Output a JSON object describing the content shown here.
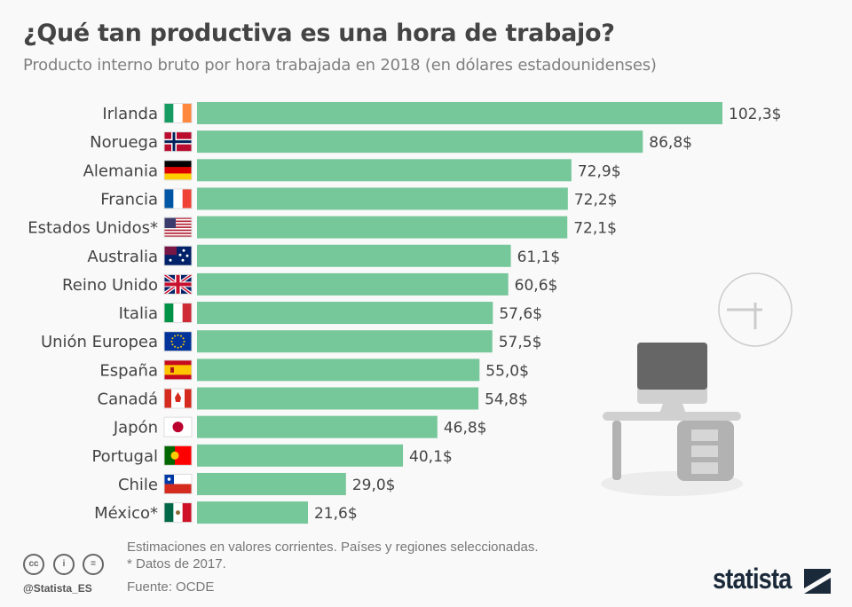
{
  "header": {
    "title": "¿Qué tan productiva es una hora de trabajo?",
    "subtitle": "Producto interno bruto por hora trabajada en 2018 (en dólares estadounidenses)"
  },
  "chart_data": {
    "type": "bar",
    "orientation": "horizontal",
    "title": "¿Qué tan productiva es una hora de trabajo?",
    "subtitle": "Producto interno bruto por hora trabajada en 2018 (en dólares estadounidenses)",
    "categories": [
      "Irlanda",
      "Noruega",
      "Alemania",
      "Francia",
      "Estados Unidos*",
      "Australia",
      "Reino Unido",
      "Italia",
      "Unión Europea",
      "España",
      "Canadá",
      "Japón",
      "Portugal",
      "Chile",
      "México*"
    ],
    "flags": [
      "ireland-flag",
      "norway-flag",
      "germany-flag",
      "france-flag",
      "usa-flag",
      "australia-flag",
      "uk-flag",
      "italy-flag",
      "eu-flag",
      "spain-flag",
      "canada-flag",
      "japan-flag",
      "portugal-flag",
      "chile-flag",
      "mexico-flag"
    ],
    "values": [
      102.3,
      86.8,
      72.9,
      72.2,
      72.1,
      61.1,
      60.6,
      57.6,
      57.5,
      55.0,
      54.8,
      46.8,
      40.1,
      29.0,
      21.6
    ],
    "value_labels": [
      "102,3$",
      "86,8$",
      "72,9$",
      "72,2$",
      "72,1$",
      "61,1$",
      "60,6$",
      "57,6$",
      "57,5$",
      "55,0$",
      "54,8$",
      "46,8$",
      "40,1$",
      "29,0$",
      "21,6$"
    ],
    "xlim": [
      0,
      102.3
    ],
    "grid": false,
    "bar_color": "#76c79a"
  },
  "footer": {
    "note": "Estimaciones en valores corrientes. Países y regiones seleccionadas.",
    "note2": "* Datos de 2017.",
    "source": "Fuente: OCDE",
    "handle": "@Statista_ES",
    "license_icons": [
      "cc-icon",
      "by-icon",
      "nd-icon"
    ],
    "cc": "cc",
    "by": "i",
    "nd": "=",
    "logo": "statista"
  }
}
